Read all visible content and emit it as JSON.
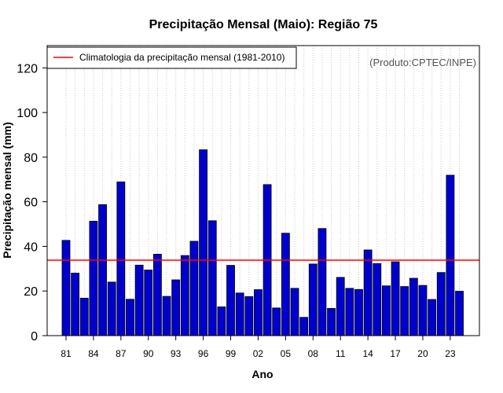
{
  "chart_data": {
    "type": "bar",
    "title": "Precipitação Mensal (Maio): Região 75",
    "xlabel": "Ano",
    "ylabel": "Precipitação mensal (mm)",
    "ylim": [
      0,
      130
    ],
    "yticks": [
      0,
      20,
      40,
      60,
      80,
      100,
      120
    ],
    "grid": "vertical dotted",
    "years": [
      "1981",
      "1982",
      "1983",
      "1984",
      "1985",
      "1986",
      "1987",
      "1988",
      "1989",
      "1990",
      "1991",
      "1992",
      "1993",
      "1994",
      "1995",
      "1996",
      "1997",
      "1998",
      "1999",
      "2000",
      "2001",
      "2002",
      "2003",
      "2004",
      "2005",
      "2006",
      "2007",
      "2008",
      "2009",
      "2010",
      "2011",
      "2012",
      "2013",
      "2014",
      "2015",
      "2016",
      "2017",
      "2018",
      "2019",
      "2020",
      "2021",
      "2022",
      "2023",
      "2024"
    ],
    "xtick_labels": [
      "81",
      "84",
      "87",
      "90",
      "93",
      "96",
      "99",
      "02",
      "05",
      "08",
      "11",
      "14",
      "17",
      "20",
      "23"
    ],
    "values": [
      42.7,
      28.0,
      16.8,
      51.3,
      58.7,
      24.0,
      68.9,
      16.3,
      31.6,
      29.4,
      36.5,
      17.6,
      25.0,
      35.9,
      42.3,
      83.3,
      51.5,
      12.9,
      31.5,
      19.1,
      17.5,
      20.6,
      67.7,
      12.4,
      45.9,
      21.2,
      8.2,
      32.1,
      48.0,
      12.2,
      26.1,
      21.2,
      20.7,
      38.4,
      32.3,
      22.3,
      33.1,
      22.0,
      25.7,
      22.5,
      16.2,
      28.3,
      71.9,
      19.9
    ],
    "bar_color": "#0000cd",
    "reference_line": {
      "value": 33.8,
      "color": "#ff0000",
      "label": "Climatologia da precipitação mensal (1981-2010)"
    },
    "legend_position": "top-left",
    "credit": "(Produto:CPTEC/INPE)"
  }
}
